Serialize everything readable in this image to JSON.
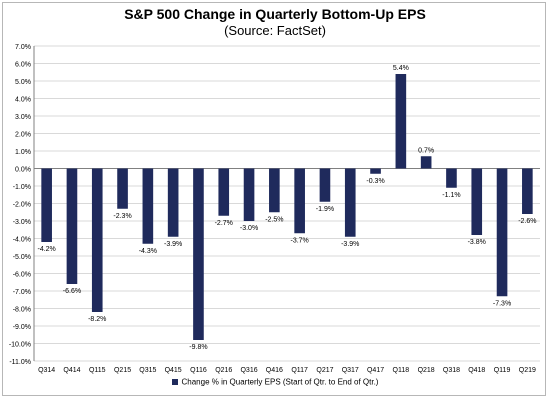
{
  "chart_data": {
    "type": "bar",
    "title": "S&P 500 Change in Quarterly Bottom-Up EPS",
    "subtitle": "(Source: FactSet)",
    "categories": [
      "Q314",
      "Q414",
      "Q115",
      "Q215",
      "Q315",
      "Q415",
      "Q116",
      "Q216",
      "Q316",
      "Q416",
      "Q117",
      "Q217",
      "Q317",
      "Q417",
      "Q118",
      "Q218",
      "Q318",
      "Q418",
      "Q119",
      "Q219"
    ],
    "series": [
      {
        "name": "Change % in Quarterly EPS (Start of Qtr. to End of Qtr.)",
        "values": [
          -4.2,
          -6.6,
          -8.2,
          -2.3,
          -4.3,
          -3.9,
          -9.8,
          -2.7,
          -3.0,
          -2.5,
          -3.7,
          -1.9,
          -3.9,
          -0.3,
          5.4,
          0.7,
          -1.1,
          -3.8,
          -7.3,
          -2.6
        ],
        "labels": [
          "-4.2%",
          "-6.6%",
          "-8.2%",
          "-2.3%",
          "-4.3%",
          "-3.9%",
          "-9.8%",
          "-2.7%",
          "-3.0%",
          "-2.5%",
          "-3.7%",
          "-1.9%",
          "-3.9%",
          "-0.3%",
          "5.4%",
          "0.7%",
          "-1.1%",
          "-3.8%",
          "-7.3%",
          "-2.6%"
        ]
      }
    ],
    "ylim": [
      -11,
      7
    ],
    "yticks": [
      7,
      6,
      5,
      4,
      3,
      2,
      1,
      0,
      -1,
      -2,
      -3,
      -4,
      -5,
      -6,
      -7,
      -8,
      -9,
      -10,
      -11
    ],
    "ytick_labels": [
      "7.0%",
      "6.0%",
      "5.0%",
      "4.0%",
      "3.0%",
      "2.0%",
      "1.0%",
      "0.0%",
      "-1.0%",
      "-2.0%",
      "-3.0%",
      "-4.0%",
      "-5.0%",
      "-6.0%",
      "-7.0%",
      "-8.0%",
      "-9.0%",
      "-10.0%",
      "-11.0%"
    ],
    "xlabel": "",
    "ylabel": "",
    "grid": true,
    "legend_position": "bottom",
    "colors": {
      "bar": "#1f2a5c",
      "grid": "#d9d9d9",
      "axis": "#808080"
    }
  }
}
